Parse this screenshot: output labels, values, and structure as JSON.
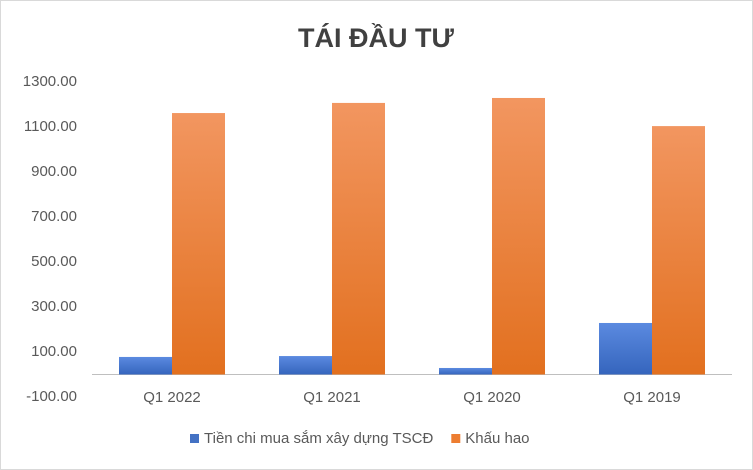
{
  "chart_data": {
    "type": "bar",
    "title": "TÁI ĐẦU TƯ",
    "categories": [
      "Q1 2022",
      "Q1 2021",
      "Q1 2020",
      "Q1 2019"
    ],
    "series": [
      {
        "name": "Tiền chi mua sắm xây dựng TSCĐ",
        "color": "#4472c4",
        "values": [
          78,
          82,
          29,
          229
        ]
      },
      {
        "name": "Khấu hao",
        "color": "#ed7d31",
        "values": [
          1162,
          1207,
          1229,
          1104
        ]
      }
    ],
    "ylim": [
      -100,
      1300
    ],
    "yticks": [
      {
        "value": -100,
        "label": "-100.00"
      },
      {
        "value": 100,
        "label": "100.00"
      },
      {
        "value": 300,
        "label": "300.00"
      },
      {
        "value": 500,
        "label": "500.00"
      },
      {
        "value": 700,
        "label": "700.00"
      },
      {
        "value": 900,
        "label": "900.00"
      },
      {
        "value": 1100,
        "label": "1100.00"
      },
      {
        "value": 1300,
        "label": "1300.00"
      }
    ],
    "grid": false,
    "legend": "bottom"
  }
}
